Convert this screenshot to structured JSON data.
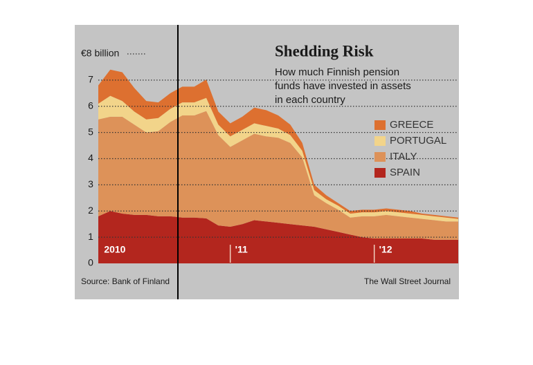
{
  "chart_data": {
    "type": "stacked-area",
    "title": "Shedding Risk",
    "subtitle": [
      "How much Finnish pension",
      "funds have invested in assets",
      "in each country"
    ],
    "source": "Source: Bank of Finland",
    "credit": "The Wall Street Journal",
    "categories": [
      null,
      "2010",
      null,
      null,
      null,
      null,
      null,
      null,
      null,
      null,
      null,
      "'11",
      null,
      null,
      null,
      null,
      null,
      null,
      null,
      null,
      null,
      null,
      null,
      "'12",
      null,
      null,
      null,
      null,
      null,
      null,
      null
    ],
    "ylim": [
      0,
      8
    ],
    "yticks": [
      0,
      1,
      2,
      3,
      4,
      5,
      6,
      7,
      {
        "value": 8,
        "label": "€8 billion"
      }
    ],
    "grid": true,
    "series": [
      {
        "name": "SPAIN",
        "color": "#b3261e",
        "values": [
          1.8,
          2.0,
          1.9,
          1.85,
          1.85,
          1.8,
          1.8,
          1.75,
          1.75,
          1.72,
          1.45,
          1.4,
          1.5,
          1.65,
          1.6,
          1.55,
          1.5,
          1.45,
          1.4,
          1.3,
          1.2,
          1.1,
          1.0,
          0.95,
          0.95,
          0.95,
          0.95,
          0.95,
          0.9,
          0.9,
          0.9
        ]
      },
      {
        "name": "ITALY",
        "color": "#dd9259",
        "values": [
          3.7,
          3.6,
          3.7,
          3.45,
          3.15,
          3.25,
          3.6,
          3.9,
          3.9,
          4.1,
          3.45,
          3.05,
          3.2,
          3.3,
          3.25,
          3.25,
          3.1,
          2.6,
          1.2,
          1.0,
          0.85,
          0.65,
          0.8,
          0.85,
          0.9,
          0.85,
          0.8,
          0.75,
          0.75,
          0.7,
          0.7
        ]
      },
      {
        "name": "PORTUGAL",
        "color": "#f2d48a",
        "values": [
          0.6,
          0.8,
          0.6,
          0.5,
          0.5,
          0.5,
          0.5,
          0.5,
          0.5,
          0.5,
          0.4,
          0.4,
          0.4,
          0.4,
          0.4,
          0.35,
          0.3,
          0.25,
          0.2,
          0.15,
          0.15,
          0.15,
          0.15,
          0.15,
          0.15,
          0.15,
          0.15,
          0.15,
          0.15,
          0.15,
          0.1
        ]
      },
      {
        "name": "GREECE",
        "color": "#dd7030",
        "values": [
          0.7,
          1.0,
          1.1,
          0.9,
          0.7,
          0.6,
          0.6,
          0.6,
          0.6,
          0.7,
          0.5,
          0.5,
          0.5,
          0.6,
          0.6,
          0.5,
          0.4,
          0.3,
          0.2,
          0.15,
          0.1,
          0.1,
          0.1,
          0.1,
          0.1,
          0.1,
          0.1,
          0.05,
          0.05,
          0.05,
          0.05
        ]
      }
    ]
  }
}
